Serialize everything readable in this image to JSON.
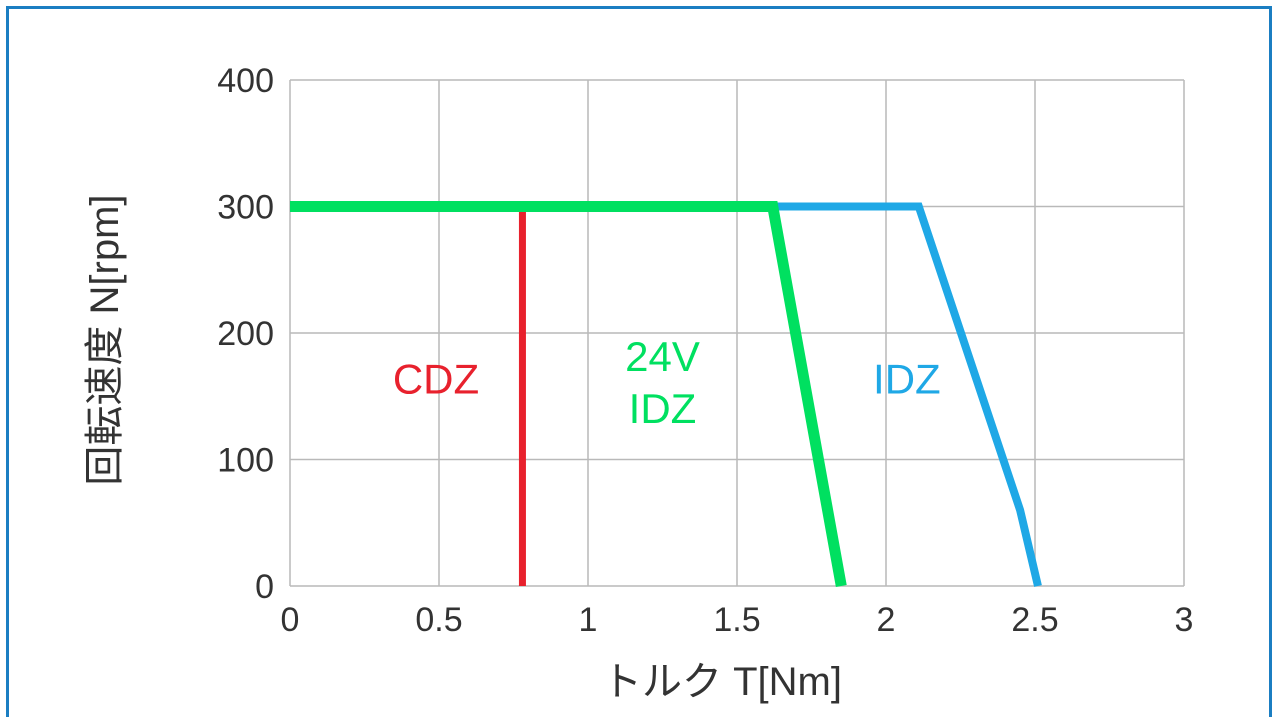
{
  "chart_data": {
    "type": "line",
    "xlabel": "トルク T[Nm]",
    "ylabel": "回転速度 N[rpm]",
    "xlim": [
      0,
      3
    ],
    "ylim": [
      0,
      400
    ],
    "xticks": [
      0,
      0.5,
      1,
      1.5,
      2,
      2.5,
      3
    ],
    "xtick_labels": [
      "0",
      "0.5",
      "1",
      "1.5",
      "2",
      "2.5",
      "3"
    ],
    "yticks": [
      0,
      100,
      200,
      300,
      400
    ],
    "ytick_labels": [
      "0",
      "100",
      "200",
      "300",
      "400"
    ],
    "grid": true,
    "series": [
      {
        "name": "CDZ",
        "color": "#e8212d",
        "label_lines": [
          "CDZ"
        ],
        "points": [
          [
            0,
            300
          ],
          [
            0.78,
            300
          ],
          [
            0.78,
            0
          ]
        ]
      },
      {
        "name": "24V IDZ",
        "color": "#00e060",
        "label_lines": [
          "24V",
          "IDZ"
        ],
        "points": [
          [
            0,
            300
          ],
          [
            1.62,
            300
          ],
          [
            1.85,
            0
          ]
        ]
      },
      {
        "name": "IDZ",
        "color": "#1fa8e6",
        "label_lines": [
          "IDZ"
        ],
        "points": [
          [
            0,
            300
          ],
          [
            2.11,
            300
          ],
          [
            2.45,
            60
          ],
          [
            2.51,
            0
          ]
        ]
      }
    ]
  }
}
